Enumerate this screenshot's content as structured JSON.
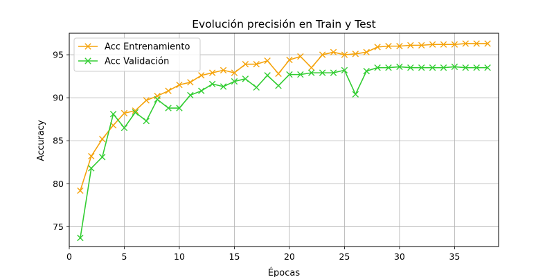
{
  "chart_data": {
    "type": "line",
    "title": "Evolución precisión en Train y Test",
    "xlabel": "Épocas",
    "ylabel": "Accuracy",
    "xlim": [
      0,
      39
    ],
    "ylim": [
      72.7,
      97.5
    ],
    "xticks": [
      0,
      5,
      10,
      15,
      20,
      25,
      30,
      35
    ],
    "yticks": [
      75,
      80,
      85,
      90,
      95
    ],
    "grid": true,
    "legend_position": "top-left",
    "marker": "x",
    "x": [
      1,
      2,
      3,
      4,
      5,
      6,
      7,
      8,
      9,
      10,
      11,
      12,
      13,
      14,
      15,
      16,
      17,
      18,
      19,
      20,
      21,
      22,
      23,
      24,
      25,
      26,
      27,
      28,
      29,
      30,
      31,
      32,
      33,
      34,
      35,
      36,
      37,
      38
    ],
    "series": [
      {
        "name": "Acc Entrenamiento",
        "color": "#f5a30c",
        "values": [
          79.2,
          83.2,
          85.2,
          86.8,
          88.2,
          88.5,
          89.7,
          90.2,
          90.8,
          91.5,
          91.8,
          92.6,
          92.9,
          93.2,
          92.9,
          93.9,
          93.9,
          94.3,
          92.8,
          94.4,
          94.8,
          93.5,
          95.0,
          95.3,
          95.0,
          95.1,
          95.3,
          95.9,
          96.0,
          96.0,
          96.1,
          96.1,
          96.2,
          96.2,
          96.2,
          96.3,
          96.3,
          96.3
        ]
      },
      {
        "name": "Acc Validación",
        "color": "#32cd32",
        "values": [
          73.7,
          81.8,
          83.1,
          88.1,
          86.5,
          88.3,
          87.3,
          89.8,
          88.8,
          88.8,
          90.3,
          90.8,
          91.6,
          91.3,
          91.9,
          92.2,
          91.2,
          92.6,
          91.4,
          92.7,
          92.7,
          92.9,
          92.9,
          92.9,
          93.2,
          90.4,
          93.1,
          93.5,
          93.5,
          93.6,
          93.5,
          93.5,
          93.5,
          93.5,
          93.6,
          93.5,
          93.5,
          93.5
        ]
      }
    ]
  }
}
